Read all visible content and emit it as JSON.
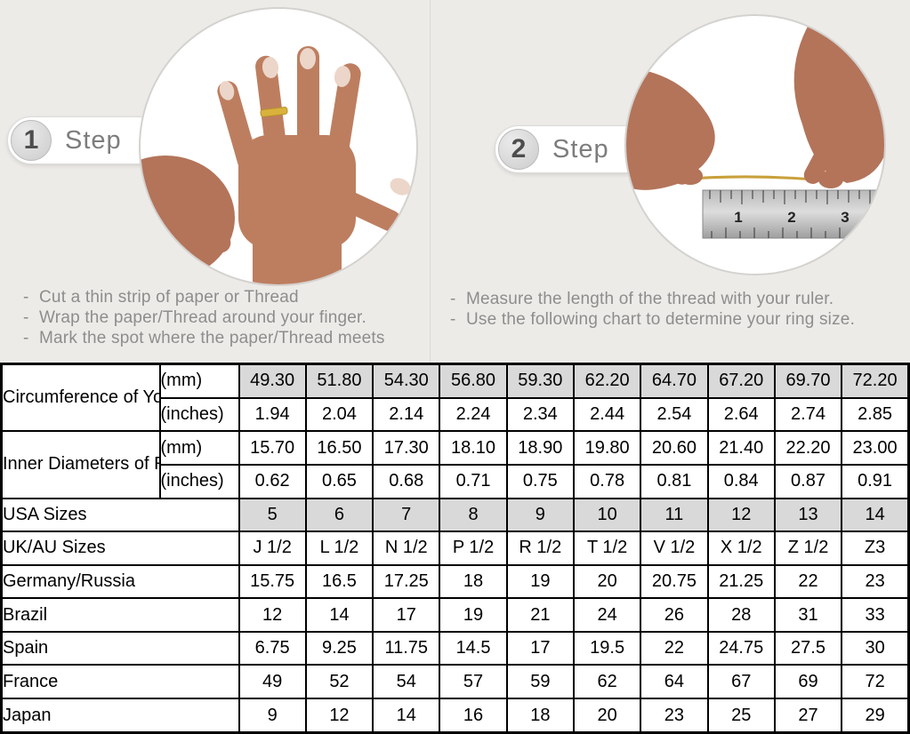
{
  "colors": {
    "page_background": "#edebe8",
    "shaded_cell": "#d9d9d9",
    "table_border": "#000000",
    "muted_text": "#8d8d8d",
    "ring_gold": "#d9b23c",
    "skin_tone": "#bd7e60"
  },
  "steps": [
    {
      "number": "1",
      "label": "Step",
      "image": "hand-with-ring",
      "bullets": [
        "Cut a thin strip of paper or Thread",
        "Wrap the paper/Thread around your finger.",
        "Mark the spot where the paper/Thread meets"
      ]
    },
    {
      "number": "2",
      "label": "Step",
      "image": "thread-measured-with-ruler",
      "bullets": [
        "Measure the length of the thread with your ruler.",
        "Use the following chart to determine your ring size."
      ],
      "ruler": {
        "numbers": [
          "1",
          "2",
          "3"
        ]
      }
    }
  ],
  "table": {
    "groups": [
      {
        "label": "Circumference of Your Finger",
        "rows": [
          {
            "sub": "(mm)",
            "shaded": true,
            "values": [
              "49.30",
              "51.80",
              "54.30",
              "56.80",
              "59.30",
              "62.20",
              "64.70",
              "67.20",
              "69.70",
              "72.20"
            ]
          },
          {
            "sub": "(inches)",
            "shaded": false,
            "values": [
              "1.94",
              "2.04",
              "2.14",
              "2.24",
              "2.34",
              "2.44",
              "2.54",
              "2.64",
              "2.74",
              "2.85"
            ]
          }
        ]
      },
      {
        "label": "Inner Diameters of Rings",
        "rows": [
          {
            "sub": "(mm)",
            "shaded": false,
            "values": [
              "15.70",
              "16.50",
              "17.30",
              "18.10",
              "18.90",
              "19.80",
              "20.60",
              "21.40",
              "22.20",
              "23.00"
            ]
          },
          {
            "sub": "(inches)",
            "shaded": false,
            "values": [
              "0.62",
              "0.65",
              "0.68",
              "0.71",
              "0.75",
              "0.78",
              "0.81",
              "0.84",
              "0.87",
              "0.91"
            ]
          }
        ]
      }
    ],
    "simple_rows": [
      {
        "label": "USA Sizes",
        "shaded": true,
        "values": [
          "5",
          "6",
          "7",
          "8",
          "9",
          "10",
          "11",
          "12",
          "13",
          "14"
        ]
      },
      {
        "label": "UK/AU Sizes",
        "shaded": false,
        "values": [
          "J 1/2",
          "L 1/2",
          "N 1/2",
          "P 1/2",
          "R 1/2",
          "T 1/2",
          "V 1/2",
          "X 1/2",
          "Z 1/2",
          "Z3"
        ]
      },
      {
        "label": "Germany/Russia",
        "shaded": false,
        "values": [
          "15.75",
          "16.5",
          "17.25",
          "18",
          "19",
          "20",
          "20.75",
          "21.25",
          "22",
          "23"
        ]
      },
      {
        "label": "Brazil",
        "shaded": false,
        "values": [
          "12",
          "14",
          "17",
          "19",
          "21",
          "24",
          "26",
          "28",
          "31",
          "33"
        ]
      },
      {
        "label": "Spain",
        "shaded": false,
        "values": [
          "6.75",
          "9.25",
          "11.75",
          "14.5",
          "17",
          "19.5",
          "22",
          "24.75",
          "27.5",
          "30"
        ]
      },
      {
        "label": "France",
        "shaded": false,
        "values": [
          "49",
          "52",
          "54",
          "57",
          "59",
          "62",
          "64",
          "67",
          "69",
          "72"
        ]
      },
      {
        "label": "Japan",
        "shaded": false,
        "values": [
          "9",
          "12",
          "14",
          "16",
          "18",
          "20",
          "23",
          "25",
          "27",
          "29"
        ]
      }
    ]
  }
}
